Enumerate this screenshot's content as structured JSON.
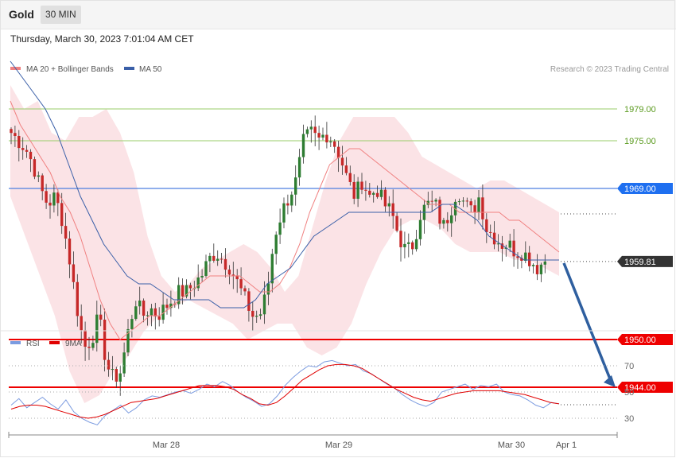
{
  "header": {
    "title": "Gold",
    "timeframe": "30 MIN"
  },
  "datetime": "Thursday, March 30, 2023 7:01:04 AM CET",
  "credit": "Research © 2023 Trading Central",
  "colors": {
    "bull": "#2e7d32",
    "bear": "#c62828",
    "band": "#fadadd",
    "ma20": "#f08080",
    "ma50": "#3a5fa8",
    "rsi": "#7b9be0",
    "rsi_ma": "#e00000",
    "support": "#ee0000",
    "resistance_blue": "#4d7fe0",
    "resistance_green": "#9acd6a",
    "current": "#333333",
    "arrow": "#2f5f9f"
  },
  "chart_data": [
    {
      "type": "candlestick",
      "legend": [
        {
          "label": "MA 20 + Bollinger Bands",
          "color": "#f08080"
        },
        {
          "label": "MA 50",
          "color": "#3a5fa8"
        }
      ],
      "ylim": [
        1941,
        1988
      ],
      "levels": [
        {
          "value": 1979.0,
          "label": "1979.00",
          "kind": "resistance-green"
        },
        {
          "value": 1975.0,
          "label": "1975.00",
          "kind": "resistance-green"
        },
        {
          "value": 1969.0,
          "label": "1969.00",
          "kind": "resistance-blue"
        },
        {
          "value": 1959.81,
          "label": "1959.81",
          "kind": "current"
        },
        {
          "value": 1950.0,
          "label": "1950.00",
          "kind": "support"
        },
        {
          "value": 1944.0,
          "label": "1944.00",
          "kind": "support"
        }
      ],
      "x_labels": [
        "Mar 28",
        "Mar 29",
        "Mar 30",
        "Apr 1"
      ],
      "projection": {
        "from": 1959.81,
        "to": 1944.0,
        "direction": "down"
      },
      "anchors": [
        1976,
        1975,
        1974,
        1972,
        1969,
        1967,
        1968,
        1965,
        1960,
        1954,
        1949,
        1950,
        1953,
        1947,
        1945,
        1946,
        1951,
        1955,
        1953,
        1954,
        1953,
        1954,
        1955,
        1956,
        1956,
        1957,
        1958,
        1960,
        1961,
        1960,
        1959,
        1957,
        1955,
        1953,
        1953,
        1956,
        1963,
        1966,
        1968,
        1970,
        1975,
        1976,
        1975,
        1976,
        1975,
        1973,
        1970,
        1968,
        1970,
        1968,
        1969,
        1967,
        1966,
        1963,
        1961,
        1962,
        1966,
        1967,
        1967,
        1964,
        1966,
        1969,
        1967,
        1966,
        1968,
        1964,
        1963,
        1962,
        1962,
        1961,
        1961,
        1960,
        1959,
        1960
      ],
      "ma20": [
        1980,
        1977,
        1975,
        1973,
        1971,
        1968,
        1966,
        1963,
        1959,
        1955,
        1952,
        1950,
        1951,
        1952,
        1953,
        1953,
        1954,
        1955,
        1956,
        1957,
        1958,
        1958,
        1958,
        1958,
        1957,
        1956,
        1956,
        1957,
        1959,
        1962,
        1966,
        1969,
        1972,
        1973,
        1974,
        1974,
        1973,
        1972,
        1971,
        1970,
        1969,
        1968,
        1967,
        1967,
        1967,
        1966,
        1966,
        1966,
        1966,
        1966,
        1965,
        1965,
        1964,
        1963,
        1962,
        1961
      ],
      "ma50": [
        1985,
        1983,
        1981,
        1979,
        1976,
        1972,
        1968,
        1965,
        1962,
        1960,
        1958,
        1957,
        1957,
        1956,
        1955,
        1955,
        1955,
        1955,
        1954,
        1954,
        1954,
        1955,
        1957,
        1958,
        1959,
        1961,
        1963,
        1964,
        1965,
        1966,
        1966,
        1966,
        1966,
        1966,
        1966,
        1966,
        1966,
        1967,
        1967,
        1966,
        1965,
        1963,
        1962,
        1961,
        1960,
        1960,
        1960,
        1960
      ],
      "bb_upper": [
        1982,
        1979,
        1980,
        1976,
        1975,
        1978,
        1978,
        1979,
        1976,
        1971,
        1963,
        1958,
        1956,
        1957,
        1959,
        1960,
        1961,
        1962,
        1961,
        1959,
        1956,
        1958,
        1964,
        1970,
        1975,
        1978,
        1978,
        1978,
        1978,
        1976,
        1973,
        1972,
        1971,
        1970,
        1969,
        1970,
        1970,
        1969,
        1968,
        1967,
        1966
      ],
      "bb_lower": [
        1968,
        1963,
        1958,
        1953,
        1946,
        1942,
        1943,
        1946,
        1948,
        1951,
        1953,
        1954,
        1955,
        1954,
        1953,
        1952,
        1950,
        1951,
        1952,
        1952,
        1949,
        1948,
        1949,
        1952,
        1957,
        1961,
        1964,
        1965,
        1965,
        1964,
        1962,
        1961,
        1961,
        1961,
        1960,
        1960,
        1959,
        1958
      ]
    },
    {
      "type": "line",
      "legend": [
        {
          "label": "RSI",
          "color": "#7b9be0"
        },
        {
          "label": "9MA",
          "color": "#e00000"
        }
      ],
      "ylim": [
        18,
        80
      ],
      "levels": [
        70,
        50,
        30
      ],
      "rsi": [
        40,
        45,
        38,
        42,
        46,
        41,
        37,
        44,
        35,
        30,
        27,
        25,
        32,
        36,
        40,
        34,
        38,
        44,
        47,
        46,
        48,
        50,
        51,
        49,
        52,
        56,
        54,
        58,
        55,
        50,
        46,
        43,
        39,
        41,
        47,
        55,
        61,
        66,
        70,
        69,
        73,
        74,
        72,
        70,
        71,
        66,
        64,
        60,
        56,
        53,
        48,
        44,
        41,
        39,
        42,
        50,
        52,
        54,
        56,
        52,
        55,
        54,
        56,
        50,
        48,
        47,
        44,
        40,
        38,
        42,
        41
      ],
      "rsi_ma": [
        37,
        39,
        40,
        40,
        39,
        37,
        35,
        33,
        31,
        30,
        31,
        33,
        36,
        39,
        42,
        43,
        44,
        45,
        47,
        49,
        51,
        53,
        55,
        55,
        55,
        54,
        52,
        48,
        45,
        41,
        40,
        42,
        47,
        53,
        59,
        63,
        67,
        70,
        71,
        71,
        70,
        68,
        64,
        60,
        56,
        52,
        49,
        46,
        44,
        43,
        45,
        47,
        49,
        50,
        51,
        51,
        51,
        51,
        50,
        49,
        48,
        46,
        44,
        42,
        41
      ]
    }
  ]
}
